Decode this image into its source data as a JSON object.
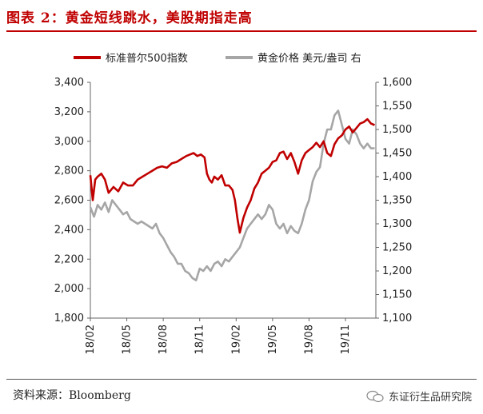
{
  "title": "图表 2：黄金短线跳水，美股期指走高",
  "source": "资料来源：Bloomberg",
  "brand": "东证衍生品研究院",
  "chart_data": {
    "type": "line",
    "title": "",
    "legend_position": "top",
    "grid": false,
    "x_ticks": [
      "18/02",
      "18/05",
      "18/08",
      "18/11",
      "19/02",
      "19/05",
      "19/08",
      "19/11"
    ],
    "x_range": [
      0,
      23.5
    ],
    "ylim_left": [
      1800,
      3400
    ],
    "yticks_left": [
      "1,800",
      "2,000",
      "2,200",
      "2,400",
      "2,600",
      "2,800",
      "3,000",
      "3,200",
      "3,400"
    ],
    "ylim_right": [
      1100,
      1600
    ],
    "yticks_right": [
      "1,100",
      "1,150",
      "1,200",
      "1,250",
      "1,300",
      "1,350",
      "1,400",
      "1,450",
      "1,500",
      "1,550",
      "1,600"
    ],
    "series": [
      {
        "name": "标准普尔500指数",
        "axis": "left",
        "color": "#c00000",
        "x": [
          0,
          0.2,
          0.4,
          0.6,
          0.9,
          1.2,
          1.5,
          1.9,
          2.3,
          2.7,
          3.1,
          3.5,
          3.9,
          4.3,
          4.7,
          5.1,
          5.5,
          5.9,
          6.3,
          6.7,
          7.1,
          7.5,
          7.9,
          8.2,
          8.5,
          8.8,
          9.1,
          9.4,
          9.6,
          9.8,
          10.0,
          10.2,
          10.5,
          10.8,
          11.1,
          11.4,
          11.7,
          11.9,
          12.1,
          12.3,
          12.6,
          12.9,
          13.2,
          13.5,
          13.8,
          14.1,
          14.4,
          14.7,
          15.0,
          15.3,
          15.6,
          15.9,
          16.2,
          16.5,
          16.8,
          17.1,
          17.4,
          17.7,
          18.0,
          18.3,
          18.6,
          18.9,
          19.2,
          19.5,
          19.8,
          20.1,
          20.4,
          20.7,
          21.0,
          21.3,
          21.6,
          21.9,
          22.2,
          22.5,
          22.8,
          23.1,
          23.4
        ],
        "values": [
          2770,
          2600,
          2740,
          2760,
          2780,
          2740,
          2650,
          2690,
          2660,
          2720,
          2700,
          2700,
          2740,
          2760,
          2780,
          2800,
          2820,
          2830,
          2820,
          2850,
          2860,
          2880,
          2900,
          2910,
          2920,
          2900,
          2910,
          2890,
          2780,
          2740,
          2720,
          2760,
          2740,
          2770,
          2700,
          2700,
          2670,
          2600,
          2480,
          2380,
          2480,
          2550,
          2600,
          2680,
          2720,
          2780,
          2800,
          2820,
          2860,
          2870,
          2920,
          2930,
          2880,
          2920,
          2860,
          2780,
          2870,
          2920,
          2940,
          2960,
          2990,
          2960,
          3000,
          2920,
          2900,
          2980,
          3020,
          3040,
          3080,
          3100,
          3060,
          3090,
          3120,
          3130,
          3150,
          3120,
          3110
        ]
      },
      {
        "name": "黄金价格 美元/盎司  右",
        "axis": "right",
        "color": "#a6a6a6",
        "x": [
          0,
          0.3,
          0.6,
          0.9,
          1.2,
          1.5,
          1.8,
          2.1,
          2.4,
          2.7,
          3.0,
          3.3,
          3.6,
          3.9,
          4.2,
          4.5,
          4.8,
          5.1,
          5.4,
          5.7,
          6.0,
          6.3,
          6.6,
          6.9,
          7.2,
          7.5,
          7.8,
          8.1,
          8.4,
          8.7,
          9.0,
          9.3,
          9.6,
          9.9,
          10.2,
          10.5,
          10.8,
          11.1,
          11.4,
          11.7,
          12.0,
          12.3,
          12.6,
          12.9,
          13.2,
          13.5,
          13.8,
          14.1,
          14.4,
          14.7,
          15.0,
          15.3,
          15.6,
          15.9,
          16.2,
          16.5,
          16.8,
          17.1,
          17.4,
          17.7,
          18.0,
          18.3,
          18.6,
          18.9,
          19.2,
          19.5,
          19.8,
          20.1,
          20.4,
          20.7,
          21.0,
          21.3,
          21.6,
          21.9,
          22.2,
          22.5,
          22.8,
          23.1,
          23.4
        ],
        "values": [
          1335,
          1315,
          1340,
          1330,
          1345,
          1325,
          1350,
          1340,
          1330,
          1320,
          1325,
          1310,
          1305,
          1300,
          1305,
          1300,
          1295,
          1290,
          1300,
          1280,
          1270,
          1255,
          1240,
          1230,
          1215,
          1215,
          1200,
          1195,
          1185,
          1180,
          1205,
          1200,
          1210,
          1200,
          1215,
          1220,
          1210,
          1225,
          1220,
          1230,
          1240,
          1250,
          1270,
          1290,
          1300,
          1310,
          1320,
          1310,
          1320,
          1340,
          1330,
          1300,
          1290,
          1300,
          1280,
          1295,
          1285,
          1280,
          1300,
          1330,
          1350,
          1390,
          1410,
          1420,
          1470,
          1500,
          1500,
          1530,
          1540,
          1510,
          1480,
          1470,
          1500,
          1490,
          1470,
          1460,
          1470,
          1460,
          1460
        ]
      }
    ]
  }
}
